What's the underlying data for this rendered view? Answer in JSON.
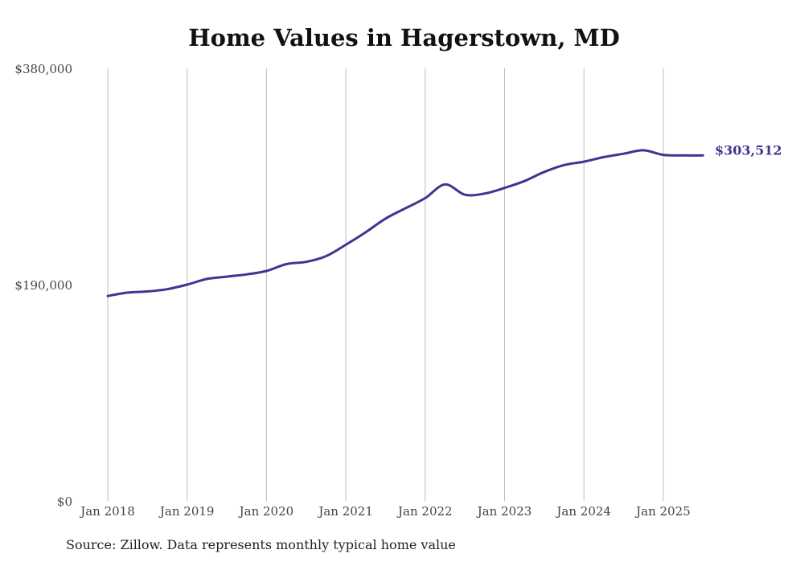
{
  "colors": {
    "line": "#3e3592",
    "grid": "#bdbdbd",
    "text": "#444444",
    "title": "#111111"
  },
  "chart_data": {
    "type": "line",
    "title": "Home Values in Hagerstown, MD",
    "source": "Source: Zillow. Data represents monthly typical home value",
    "xlabel": "",
    "ylabel": "",
    "x_ticks": [
      "Jan 2018",
      "Jan 2019",
      "Jan 2020",
      "Jan 2021",
      "Jan 2022",
      "Jan 2023",
      "Jan 2024",
      "Jan 2025"
    ],
    "y_ticks": [
      "$0",
      "$190,000",
      "$380,000"
    ],
    "y_tick_values": [
      0,
      190000,
      380000
    ],
    "ylim": [
      0,
      380000
    ],
    "xlim": [
      "2018-01",
      "2025-12"
    ],
    "vertical_grid": true,
    "horizontal_grid": false,
    "end_label": "$303,512",
    "series": [
      {
        "x": [
          "2018-01",
          "2018-04",
          "2018-07",
          "2018-10",
          "2019-01",
          "2019-04",
          "2019-07",
          "2019-10",
          "2020-01",
          "2020-04",
          "2020-07",
          "2020-10",
          "2021-01",
          "2021-04",
          "2021-07",
          "2021-10",
          "2022-01",
          "2022-04",
          "2022-07",
          "2022-10",
          "2023-01",
          "2023-04",
          "2023-07",
          "2023-10",
          "2024-01",
          "2024-04",
          "2024-07",
          "2024-10",
          "2025-01",
          "2025-04",
          "2025-07"
        ],
        "values": [
          180000,
          183000,
          184000,
          186000,
          190000,
          195000,
          197000,
          199000,
          202000,
          208000,
          210000,
          215000,
          225000,
          236000,
          248000,
          257000,
          266000,
          278000,
          269000,
          270000,
          275000,
          281000,
          289000,
          295000,
          298000,
          302000,
          305000,
          308000,
          304000,
          303500,
          303512
        ]
      }
    ]
  }
}
